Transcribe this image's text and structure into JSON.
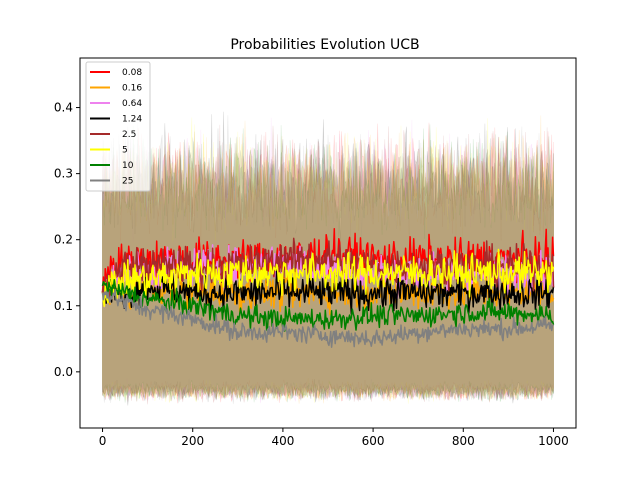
{
  "chart_data": {
    "type": "line",
    "title": "Probabilities Evolution UCB",
    "xlabel": "",
    "ylabel": "",
    "xlim": [
      -50,
      1050
    ],
    "ylim": [
      -0.085,
      0.475
    ],
    "xticks": [
      0,
      200,
      400,
      600,
      800,
      1000
    ],
    "xtick_labels": [
      "0",
      "200",
      "400",
      "600",
      "800",
      "1000"
    ],
    "yticks": [
      0.0,
      0.1,
      0.2,
      0.3,
      0.4
    ],
    "ytick_labels": [
      "0.0",
      "0.1",
      "0.2",
      "0.3",
      "0.4"
    ],
    "grid": false,
    "legend_position": "top-left",
    "confidence_band": {
      "upper_mean": 0.29,
      "upper_noise": 0.05,
      "upper_max": 0.44,
      "lower_mean": -0.03,
      "lower_noise": 0.01,
      "lower_min": -0.055
    },
    "series": [
      {
        "name": "0.08",
        "color": "#ff0000",
        "points": [
          [
            0,
            0.12
          ],
          [
            20,
            0.17
          ],
          [
            50,
            0.16
          ],
          [
            100,
            0.17
          ],
          [
            200,
            0.17
          ],
          [
            300,
            0.17
          ],
          [
            400,
            0.17
          ],
          [
            500,
            0.18
          ],
          [
            600,
            0.17
          ],
          [
            700,
            0.17
          ],
          [
            800,
            0.17
          ],
          [
            900,
            0.17
          ],
          [
            1000,
            0.17
          ]
        ],
        "noise": 0.022
      },
      {
        "name": "0.16",
        "color": "#ffa500",
        "points": [
          [
            0,
            0.12
          ],
          [
            50,
            0.12
          ],
          [
            100,
            0.13
          ],
          [
            200,
            0.12
          ],
          [
            300,
            0.12
          ],
          [
            400,
            0.12
          ],
          [
            500,
            0.12
          ],
          [
            600,
            0.12
          ],
          [
            700,
            0.12
          ],
          [
            800,
            0.12
          ],
          [
            900,
            0.12
          ],
          [
            1000,
            0.12
          ]
        ],
        "noise": 0.018
      },
      {
        "name": "0.64",
        "color": "#ee82ee",
        "points": [
          [
            0,
            0.12
          ],
          [
            50,
            0.15
          ],
          [
            100,
            0.15
          ],
          [
            200,
            0.16
          ],
          [
            300,
            0.16
          ],
          [
            400,
            0.17
          ],
          [
            500,
            0.16
          ],
          [
            600,
            0.15
          ],
          [
            700,
            0.15
          ],
          [
            800,
            0.15
          ],
          [
            900,
            0.15
          ],
          [
            1000,
            0.15
          ]
        ],
        "noise": 0.02
      },
      {
        "name": "1.24",
        "color": "#000000",
        "points": [
          [
            0,
            0.12
          ],
          [
            50,
            0.12
          ],
          [
            100,
            0.13
          ],
          [
            200,
            0.12
          ],
          [
            300,
            0.12
          ],
          [
            400,
            0.12
          ],
          [
            500,
            0.12
          ],
          [
            600,
            0.12
          ],
          [
            700,
            0.12
          ],
          [
            800,
            0.12
          ],
          [
            900,
            0.12
          ],
          [
            1000,
            0.12
          ]
        ],
        "noise": 0.018
      },
      {
        "name": "2.5",
        "color": "#a52a2a",
        "points": [
          [
            0,
            0.12
          ],
          [
            50,
            0.16
          ],
          [
            100,
            0.16
          ],
          [
            200,
            0.16
          ],
          [
            300,
            0.16
          ],
          [
            400,
            0.17
          ],
          [
            500,
            0.17
          ],
          [
            600,
            0.16
          ],
          [
            700,
            0.16
          ],
          [
            800,
            0.16
          ],
          [
            900,
            0.16
          ],
          [
            1000,
            0.16
          ]
        ],
        "noise": 0.02
      },
      {
        "name": "5",
        "color": "#ffff00",
        "points": [
          [
            0,
            0.12
          ],
          [
            50,
            0.14
          ],
          [
            100,
            0.14
          ],
          [
            200,
            0.15
          ],
          [
            300,
            0.15
          ],
          [
            400,
            0.15
          ],
          [
            500,
            0.15
          ],
          [
            600,
            0.15
          ],
          [
            700,
            0.15
          ],
          [
            800,
            0.15
          ],
          [
            900,
            0.15
          ],
          [
            1000,
            0.15
          ]
        ],
        "noise": 0.02
      },
      {
        "name": "10",
        "color": "#008000",
        "points": [
          [
            0,
            0.13
          ],
          [
            50,
            0.12
          ],
          [
            100,
            0.11
          ],
          [
            200,
            0.1
          ],
          [
            300,
            0.085
          ],
          [
            400,
            0.08
          ],
          [
            500,
            0.08
          ],
          [
            600,
            0.085
          ],
          [
            700,
            0.085
          ],
          [
            800,
            0.09
          ],
          [
            900,
            0.09
          ],
          [
            1000,
            0.085
          ]
        ],
        "noise": 0.012
      },
      {
        "name": "25",
        "color": "#808080",
        "points": [
          [
            0,
            0.12
          ],
          [
            50,
            0.105
          ],
          [
            100,
            0.095
          ],
          [
            200,
            0.08
          ],
          [
            300,
            0.06
          ],
          [
            400,
            0.06
          ],
          [
            500,
            0.055
          ],
          [
            600,
            0.05
          ],
          [
            700,
            0.06
          ],
          [
            800,
            0.065
          ],
          [
            900,
            0.065
          ],
          [
            1000,
            0.07
          ]
        ],
        "noise": 0.01
      }
    ]
  }
}
